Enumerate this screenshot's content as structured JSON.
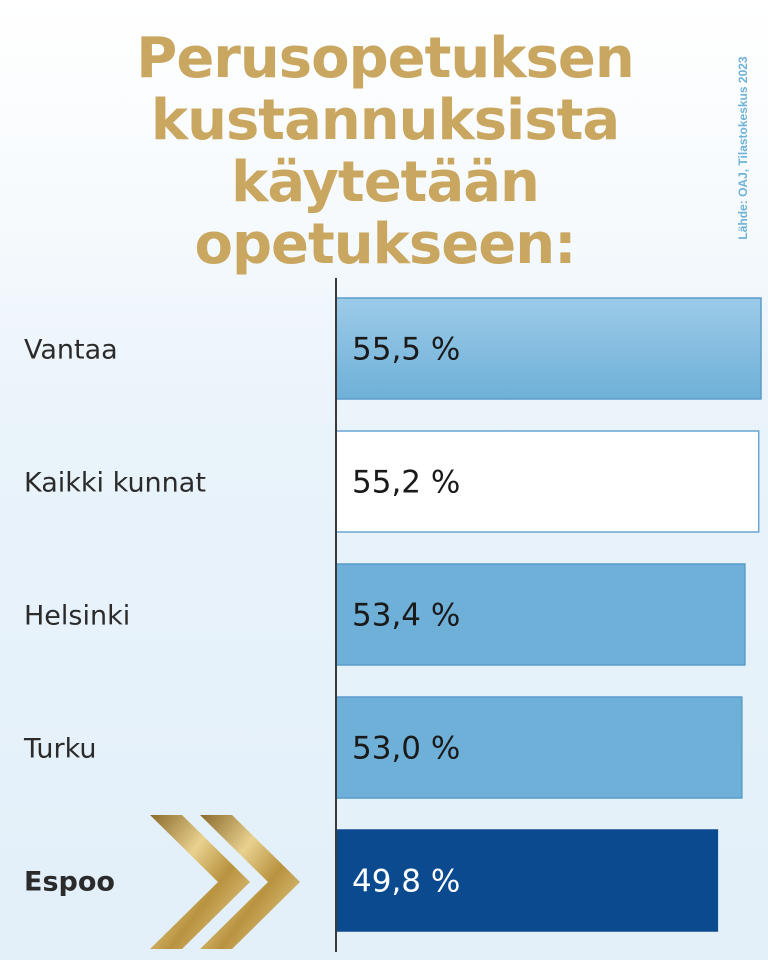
{
  "title": "Perusopetuksen kustannuksista käytetään opetukseen:",
  "source": "Lähde: OAJ, Tilastokeskus 2023",
  "colors": {
    "title": "#c9a760",
    "bar_light_top": "#85bde0",
    "bar_light": "#6fb0d8",
    "bar_white": "#ffffff",
    "bar_highlight": "#0c4a8f",
    "gold": "#c9a760",
    "axis": "#3a3a3a"
  },
  "chart_data": {
    "type": "bar",
    "orientation": "horizontal",
    "categories": [
      "Vantaa",
      "Kaikki kunnat",
      "Helsinki",
      "Turku",
      "Espoo"
    ],
    "values": [
      55.5,
      55.2,
      53.4,
      53.0,
      49.8
    ],
    "value_labels": [
      "55,5 %",
      "55,2 %",
      "53,4 %",
      "53,0 %",
      "49,8 %"
    ],
    "highlighted": "Espoo",
    "bar_styles": [
      "light",
      "white",
      "light",
      "light",
      "highlight"
    ]
  }
}
